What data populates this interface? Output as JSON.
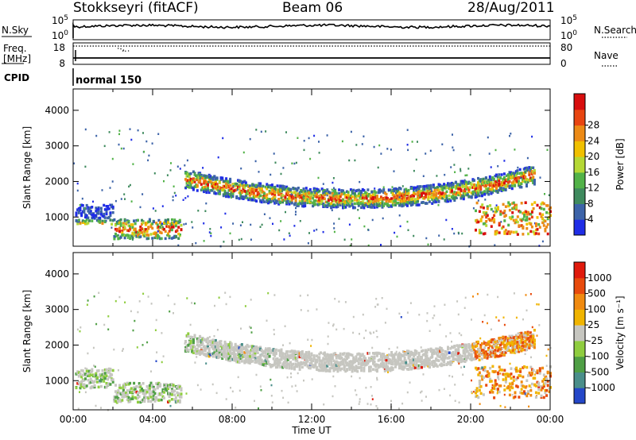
{
  "header": {
    "title": "Stokkseyri (fitACF)",
    "beam": "Beam 06",
    "date": "28/Aug/2011"
  },
  "chart_data": [
    {
      "type": "line",
      "panel": "noise",
      "left_label": "N.Sky",
      "right_label": "N.Search",
      "left_ticks": [
        "10^5",
        "10^0"
      ],
      "right_ticks": [
        "10^5",
        "10^0"
      ],
      "series": [
        {
          "name": "N.Sky",
          "style": "solid"
        },
        {
          "name": "N.Search",
          "style": "dotted"
        }
      ]
    },
    {
      "type": "line",
      "panel": "frequency",
      "left_label": "Freq. [MHz]",
      "left_ticks": [
        18,
        8
      ],
      "right_label": "Nave",
      "right_ticks": [
        80,
        0
      ],
      "series": [
        {
          "name": "Freq.",
          "style": "solid"
        },
        {
          "name": "Nave",
          "style": "dotted"
        }
      ]
    },
    {
      "type": "table",
      "panel": "cpid",
      "label": "CPID",
      "value": "normal 150"
    },
    {
      "type": "heatmap",
      "panel": "power",
      "ylabel": "Slant Range [km]",
      "yticks": [
        1000,
        2000,
        3000,
        4000
      ],
      "ylim": [
        180,
        4600
      ],
      "colorbar_label": "Power [dB]",
      "colorbar_ticks": [
        4,
        8,
        12,
        16,
        20,
        24,
        28
      ],
      "colors": [
        "#1f2de6",
        "#3c63a8",
        "#3f8a5e",
        "#52b248",
        "#b5d835",
        "#f0c000",
        "#ec8a16",
        "#e84511",
        "#d80e0e"
      ]
    },
    {
      "type": "heatmap",
      "panel": "velocity",
      "ylabel": "Slant Range [km]",
      "yticks": [
        1000,
        2000,
        3000,
        4000
      ],
      "ylim": [
        180,
        4600
      ],
      "xlabel": "Time UT",
      "xticks": [
        "00:00",
        "04:00",
        "08:00",
        "12:00",
        "16:00",
        "20:00",
        "00:00"
      ],
      "colorbar_label": "Velocity [m s⁻¹]",
      "colorbar_ticks": [
        "1000",
        "500",
        "100",
        "25",
        "-25",
        "-100",
        "-500",
        "-1000"
      ],
      "colors": [
        "#2447c8",
        "#4a8e8a",
        "#4f9f45",
        "#8fcd3f",
        "#c6c6c0",
        "#f0b400",
        "#f08a10",
        "#e84a0c",
        "#e01a0c"
      ]
    }
  ]
}
